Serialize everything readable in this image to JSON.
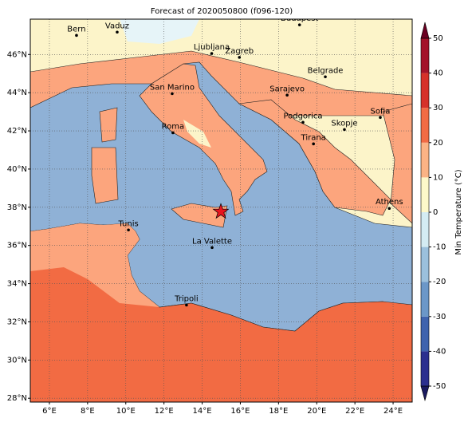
{
  "title": "Forecast of 2020050800 (f096-120)",
  "map": {
    "lon_range": [
      5,
      25
    ],
    "lat_range": [
      27.8,
      47.85
    ],
    "grid": true,
    "lon_ticks": [
      {
        "value": 6,
        "label": "6°E"
      },
      {
        "value": 8,
        "label": "8°E"
      },
      {
        "value": 10,
        "label": "10°E"
      },
      {
        "value": 12,
        "label": "12°E"
      },
      {
        "value": 14,
        "label": "14°E"
      },
      {
        "value": 16,
        "label": "16°E"
      },
      {
        "value": 18,
        "label": "18°E"
      },
      {
        "value": 20,
        "label": "20°E"
      },
      {
        "value": 22,
        "label": "22°E"
      },
      {
        "value": 24,
        "label": "24°E"
      }
    ],
    "lat_ticks": [
      {
        "value": 28,
        "label": "28°N"
      },
      {
        "value": 30,
        "label": "30°N"
      },
      {
        "value": 32,
        "label": "32°N"
      },
      {
        "value": 34,
        "label": "34°N"
      },
      {
        "value": 36,
        "label": "36°N"
      },
      {
        "value": 38,
        "label": "38°N"
      },
      {
        "value": 40,
        "label": "40°N"
      },
      {
        "value": 42,
        "label": "42°N"
      },
      {
        "value": 44,
        "label": "44°N"
      },
      {
        "value": 46,
        "label": "46°N"
      }
    ],
    "cities": [
      {
        "name": "Bern",
        "lon": 7.42,
        "lat": 47.0
      },
      {
        "name": "Vaduz",
        "lon": 9.55,
        "lat": 47.17
      },
      {
        "name": "Budapest",
        "lon": 19.1,
        "lat": 47.55
      },
      {
        "name": "Ljubljana",
        "lon": 14.5,
        "lat": 46.05
      },
      {
        "name": "Zagreb",
        "lon": 15.95,
        "lat": 45.85
      },
      {
        "name": "San Marino",
        "lon": 12.43,
        "lat": 43.95
      },
      {
        "name": "Belgrade",
        "lon": 20.45,
        "lat": 44.83
      },
      {
        "name": "Sarajevo",
        "lon": 18.45,
        "lat": 43.87
      },
      {
        "name": "Roma",
        "lon": 12.47,
        "lat": 41.9
      },
      {
        "name": "Podgorica",
        "lon": 19.28,
        "lat": 42.45
      },
      {
        "name": "Skopje",
        "lon": 21.45,
        "lat": 42.07
      },
      {
        "name": "Sofia",
        "lon": 23.33,
        "lat": 42.7
      },
      {
        "name": "Tirana",
        "lon": 19.83,
        "lat": 41.32
      },
      {
        "name": "Athens",
        "lon": 23.8,
        "lat": 37.94
      },
      {
        "name": "Tunis",
        "lon": 10.14,
        "lat": 36.81
      },
      {
        "name": "La Valette",
        "lon": 14.52,
        "lat": 35.89
      },
      {
        "name": "Tripoli",
        "lon": 13.18,
        "lat": 32.88
      }
    ],
    "marker": {
      "lon": 14.98,
      "lat": 37.77,
      "color": "#e8141e"
    }
  },
  "colorbar": {
    "label": "Min Temperature (°C)",
    "range": [
      -50,
      50
    ],
    "ticks": [
      -50,
      -40,
      -30,
      -20,
      -10,
      0,
      10,
      20,
      30,
      40,
      50
    ],
    "colors": [
      "#2b2f8f",
      "#3f63ae",
      "#6b97c8",
      "#9bc0dc",
      "#d4ecf3",
      "#fdf8c9",
      "#fbb385",
      "#f16b44",
      "#d6312a",
      "#a3132a"
    ],
    "under_color": "#1a1a60",
    "over_color": "#6b0022"
  }
}
